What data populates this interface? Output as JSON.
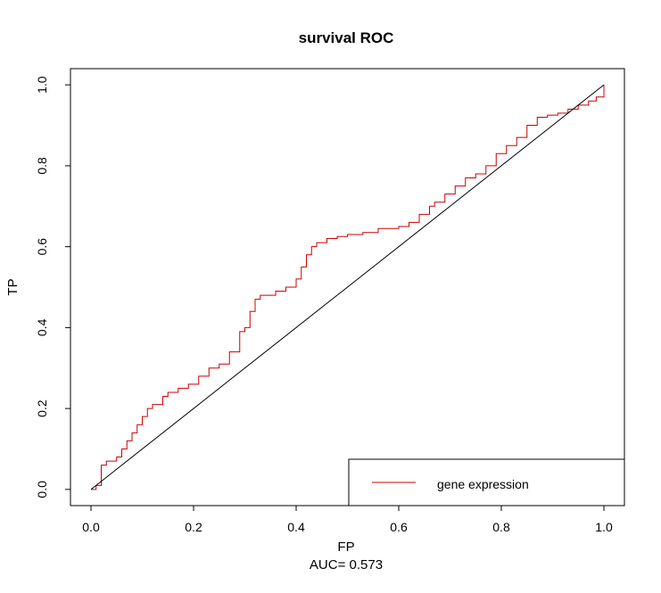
{
  "chart_data": {
    "type": "line",
    "title": "survival ROC",
    "xlabel": "FP",
    "ylabel": "TP",
    "subtitle": "AUC= 0.573",
    "xlim": [
      -0.04,
      1.04
    ],
    "ylim": [
      -0.04,
      1.04
    ],
    "x_ticks": [
      0.0,
      0.2,
      0.4,
      0.6,
      0.8,
      1.0
    ],
    "x_tick_labels": [
      "0.0",
      "0.2",
      "0.4",
      "0.6",
      "0.8",
      "1.0"
    ],
    "y_ticks": [
      0.0,
      0.2,
      0.4,
      0.6,
      0.8,
      1.0
    ],
    "y_tick_labels": [
      "0.0",
      "0.2",
      "0.4",
      "0.6",
      "0.8",
      "1.0"
    ],
    "grid": false,
    "legend_position": "bottom-right",
    "colors": {
      "roc": "#cc0000",
      "diagonal": "#000000",
      "axis": "#000000"
    },
    "series": [
      {
        "name": "gene expression",
        "color": "#cc0000",
        "style": "step",
        "x": [
          0.0,
          0.01,
          0.02,
          0.02,
          0.03,
          0.05,
          0.06,
          0.07,
          0.08,
          0.09,
          0.1,
          0.11,
          0.12,
          0.14,
          0.15,
          0.17,
          0.19,
          0.21,
          0.23,
          0.25,
          0.27,
          0.29,
          0.3,
          0.31,
          0.32,
          0.33,
          0.34,
          0.36,
          0.38,
          0.4,
          0.41,
          0.42,
          0.43,
          0.44,
          0.46,
          0.48,
          0.5,
          0.53,
          0.56,
          0.6,
          0.62,
          0.64,
          0.66,
          0.67,
          0.69,
          0.71,
          0.73,
          0.75,
          0.77,
          0.79,
          0.81,
          0.83,
          0.85,
          0.87,
          0.89,
          0.91,
          0.93,
          0.95,
          0.97,
          0.985,
          1.0
        ],
        "y": [
          0.0,
          0.01,
          0.03,
          0.06,
          0.07,
          0.08,
          0.1,
          0.12,
          0.14,
          0.16,
          0.18,
          0.2,
          0.21,
          0.23,
          0.24,
          0.25,
          0.26,
          0.28,
          0.3,
          0.31,
          0.34,
          0.39,
          0.4,
          0.44,
          0.47,
          0.48,
          0.48,
          0.49,
          0.5,
          0.52,
          0.55,
          0.58,
          0.6,
          0.61,
          0.62,
          0.625,
          0.63,
          0.635,
          0.645,
          0.65,
          0.66,
          0.68,
          0.7,
          0.71,
          0.73,
          0.75,
          0.77,
          0.78,
          0.8,
          0.83,
          0.85,
          0.87,
          0.9,
          0.92,
          0.925,
          0.93,
          0.94,
          0.95,
          0.96,
          0.97,
          1.0
        ]
      },
      {
        "name": "reference diagonal",
        "color": "#000000",
        "style": "line",
        "x": [
          0.0,
          1.0
        ],
        "y": [
          0.0,
          1.0
        ]
      }
    ]
  }
}
